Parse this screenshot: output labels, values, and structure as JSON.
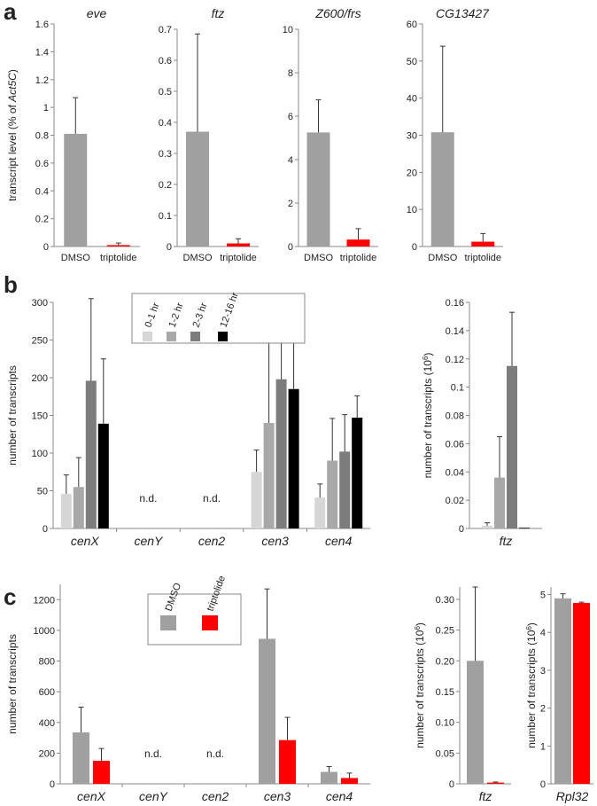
{
  "panel_labels": {
    "a": "a",
    "b": "b",
    "c": "c"
  },
  "colors": {
    "dmso": "#a0a0a0",
    "triptolide": "#ff0000",
    "h0_1": "#d6d6d6",
    "h1_2": "#a8a8a8",
    "h2_3": "#7c7c7c",
    "h12_16": "#000000",
    "axis": "#888888"
  },
  "chart_data": [
    {
      "id": "a1",
      "panel": "a",
      "type": "bar",
      "title": "eve",
      "ylabel": "transcript level (% of Act5C)",
      "ylabel_pre": "transcript level (% of ",
      "ylabel_it": "Act5C",
      "ylabel_post": ")",
      "categories": [
        "DMSO",
        "triptolide"
      ],
      "values": [
        0.81,
        0.01
      ],
      "errors": [
        0.26,
        0.015
      ],
      "colors": [
        "#a0a0a0",
        "#ff0000"
      ],
      "ylim": [
        0,
        1.6
      ],
      "yticks": [
        "0",
        "0.2",
        "0.4",
        "0.6",
        "0.8",
        "1",
        "1.2",
        "1.4",
        "1.6"
      ]
    },
    {
      "id": "a2",
      "panel": "a",
      "type": "bar",
      "title": "ftz",
      "categories": [
        "DMSO",
        "triptolide"
      ],
      "values": [
        0.37,
        0.01
      ],
      "errors": [
        0.315,
        0.015
      ],
      "colors": [
        "#a0a0a0",
        "#ff0000"
      ],
      "ylim": [
        0,
        0.7
      ],
      "yticks": [
        "0",
        "0.1",
        "0.2",
        "0.3",
        "0.4",
        "0.5",
        "0.6",
        "0.7"
      ]
    },
    {
      "id": "a3",
      "panel": "a",
      "type": "bar",
      "title": "Z600/frs",
      "categories": [
        "DMSO",
        "triptolide"
      ],
      "values": [
        5.25,
        0.32
      ],
      "errors": [
        1.5,
        0.5
      ],
      "colors": [
        "#a0a0a0",
        "#ff0000"
      ],
      "ylim": [
        0,
        10
      ],
      "yticks": [
        "0",
        "2",
        "4",
        "6",
        "8",
        "10"
      ]
    },
    {
      "id": "a4",
      "panel": "a",
      "type": "bar",
      "title": "CG13427",
      "categories": [
        "DMSO",
        "triptolide"
      ],
      "values": [
        30.8,
        1.3
      ],
      "errors": [
        23.2,
        2.2
      ],
      "colors": [
        "#a0a0a0",
        "#ff0000"
      ],
      "ylim": [
        0,
        60
      ],
      "yticks": [
        "0",
        "10",
        "20",
        "30",
        "40",
        "50",
        "60"
      ]
    },
    {
      "id": "b1",
      "panel": "b",
      "type": "bar",
      "ylabel": "number of transcripts",
      "categories": [
        "cenX",
        "cenY",
        "cen2",
        "cen3",
        "cen4"
      ],
      "nd": [
        "",
        "n.d.",
        "n.d.",
        "",
        ""
      ],
      "series": [
        {
          "name": "0-1 hr",
          "color": "#d6d6d6",
          "values": [
            46,
            null,
            null,
            75,
            41
          ],
          "errors": [
            25,
            null,
            null,
            29,
            18
          ]
        },
        {
          "name": "1-2 hr",
          "color": "#a8a8a8",
          "values": [
            55,
            null,
            null,
            140,
            90
          ],
          "errors": [
            39,
            null,
            null,
            122,
            56
          ]
        },
        {
          "name": "2-3 hr",
          "color": "#7c7c7c",
          "values": [
            196,
            null,
            null,
            198,
            102
          ],
          "errors": [
            109,
            null,
            null,
            85,
            49
          ]
        },
        {
          "name": "12-16 hr",
          "color": "#000000",
          "values": [
            139,
            null,
            null,
            185,
            147
          ],
          "errors": [
            86,
            null,
            null,
            89,
            29
          ]
        }
      ],
      "ylim": [
        0,
        300
      ],
      "yticks": [
        "0",
        "50",
        "100",
        "150",
        "200",
        "250",
        "300"
      ],
      "legend_position": "top-left"
    },
    {
      "id": "b2",
      "panel": "b",
      "type": "bar",
      "ylabel": "number of transcripts (10⁶)",
      "ylabel_pre": "number of transcripts (10",
      "ylabel_sup": "6",
      "ylabel_post": ")",
      "categories": [
        "ftz"
      ],
      "series": [
        {
          "name": "0-1 hr",
          "color": "#d6d6d6",
          "values": [
            0.002
          ],
          "errors": [
            0.002
          ]
        },
        {
          "name": "1-2 hr",
          "color": "#a8a8a8",
          "values": [
            0.036
          ],
          "errors": [
            0.029
          ]
        },
        {
          "name": "2-3 hr",
          "color": "#7c7c7c",
          "values": [
            0.115
          ],
          "errors": [
            0.038
          ]
        },
        {
          "name": "12-16 hr",
          "color": "#000000",
          "values": [
            0.0005
          ],
          "errors": [
            0
          ]
        }
      ],
      "ylim": [
        0,
        0.16
      ],
      "yticks": [
        "0",
        "0.02",
        "0.04",
        "0.06",
        "0.08",
        "0.1",
        "0.12",
        "0.14",
        "0.16"
      ]
    },
    {
      "id": "c1",
      "panel": "c",
      "type": "bar",
      "ylabel": "number of transcripts",
      "categories": [
        "cenX",
        "cenY",
        "cen2",
        "cen3",
        "cen4"
      ],
      "nd": [
        "",
        "n.d.",
        "n.d.",
        "",
        ""
      ],
      "series": [
        {
          "name": "DMSO",
          "color": "#a0a0a0",
          "values": [
            335,
            null,
            null,
            945,
            78
          ],
          "errors": [
            165,
            null,
            null,
            325,
            35
          ]
        },
        {
          "name": "triptolide",
          "color": "#ff0000",
          "values": [
            150,
            null,
            null,
            285,
            38
          ],
          "errors": [
            80,
            null,
            null,
            148,
            32
          ]
        }
      ],
      "ylim": [
        0,
        1300
      ],
      "yticks": [
        "0",
        "200",
        "400",
        "600",
        "800",
        "1000",
        "1200"
      ],
      "legend_position": "top-center"
    },
    {
      "id": "c2",
      "panel": "c",
      "type": "bar",
      "ylabel": "number of transcripts (10⁶)",
      "ylabel_pre": "number of transcripts (10",
      "ylabel_sup": "6",
      "ylabel_post": ")",
      "categories": [
        "ftz"
      ],
      "series": [
        {
          "name": "DMSO",
          "color": "#a0a0a0",
          "values": [
            0.2
          ],
          "errors": [
            0.12
          ]
        },
        {
          "name": "triptolide",
          "color": "#ff0000",
          "values": [
            0.002
          ],
          "errors": [
            0.001
          ]
        }
      ],
      "ylim": [
        0,
        0.32
      ],
      "yticks": [
        "0",
        "0.05",
        "0.10",
        "0.15",
        "0.20",
        "0.25",
        "0.30"
      ]
    },
    {
      "id": "c3",
      "panel": "c",
      "type": "bar",
      "ylabel": "number of transcripts (10⁶)",
      "ylabel_pre": "number of transcripts (10",
      "ylabel_sup": "6",
      "ylabel_post": ")",
      "categories": [
        "Rpl32"
      ],
      "series": [
        {
          "name": "DMSO",
          "color": "#a0a0a0",
          "values": [
            4.9
          ],
          "errors": [
            0.12
          ]
        },
        {
          "name": "triptolide",
          "color": "#ff0000",
          "values": [
            4.78
          ],
          "errors": [
            0.02
          ]
        }
      ],
      "ylim": [
        0,
        5.2
      ],
      "yticks": [
        "0",
        "1",
        "2",
        "3",
        "4",
        "5"
      ]
    }
  ]
}
